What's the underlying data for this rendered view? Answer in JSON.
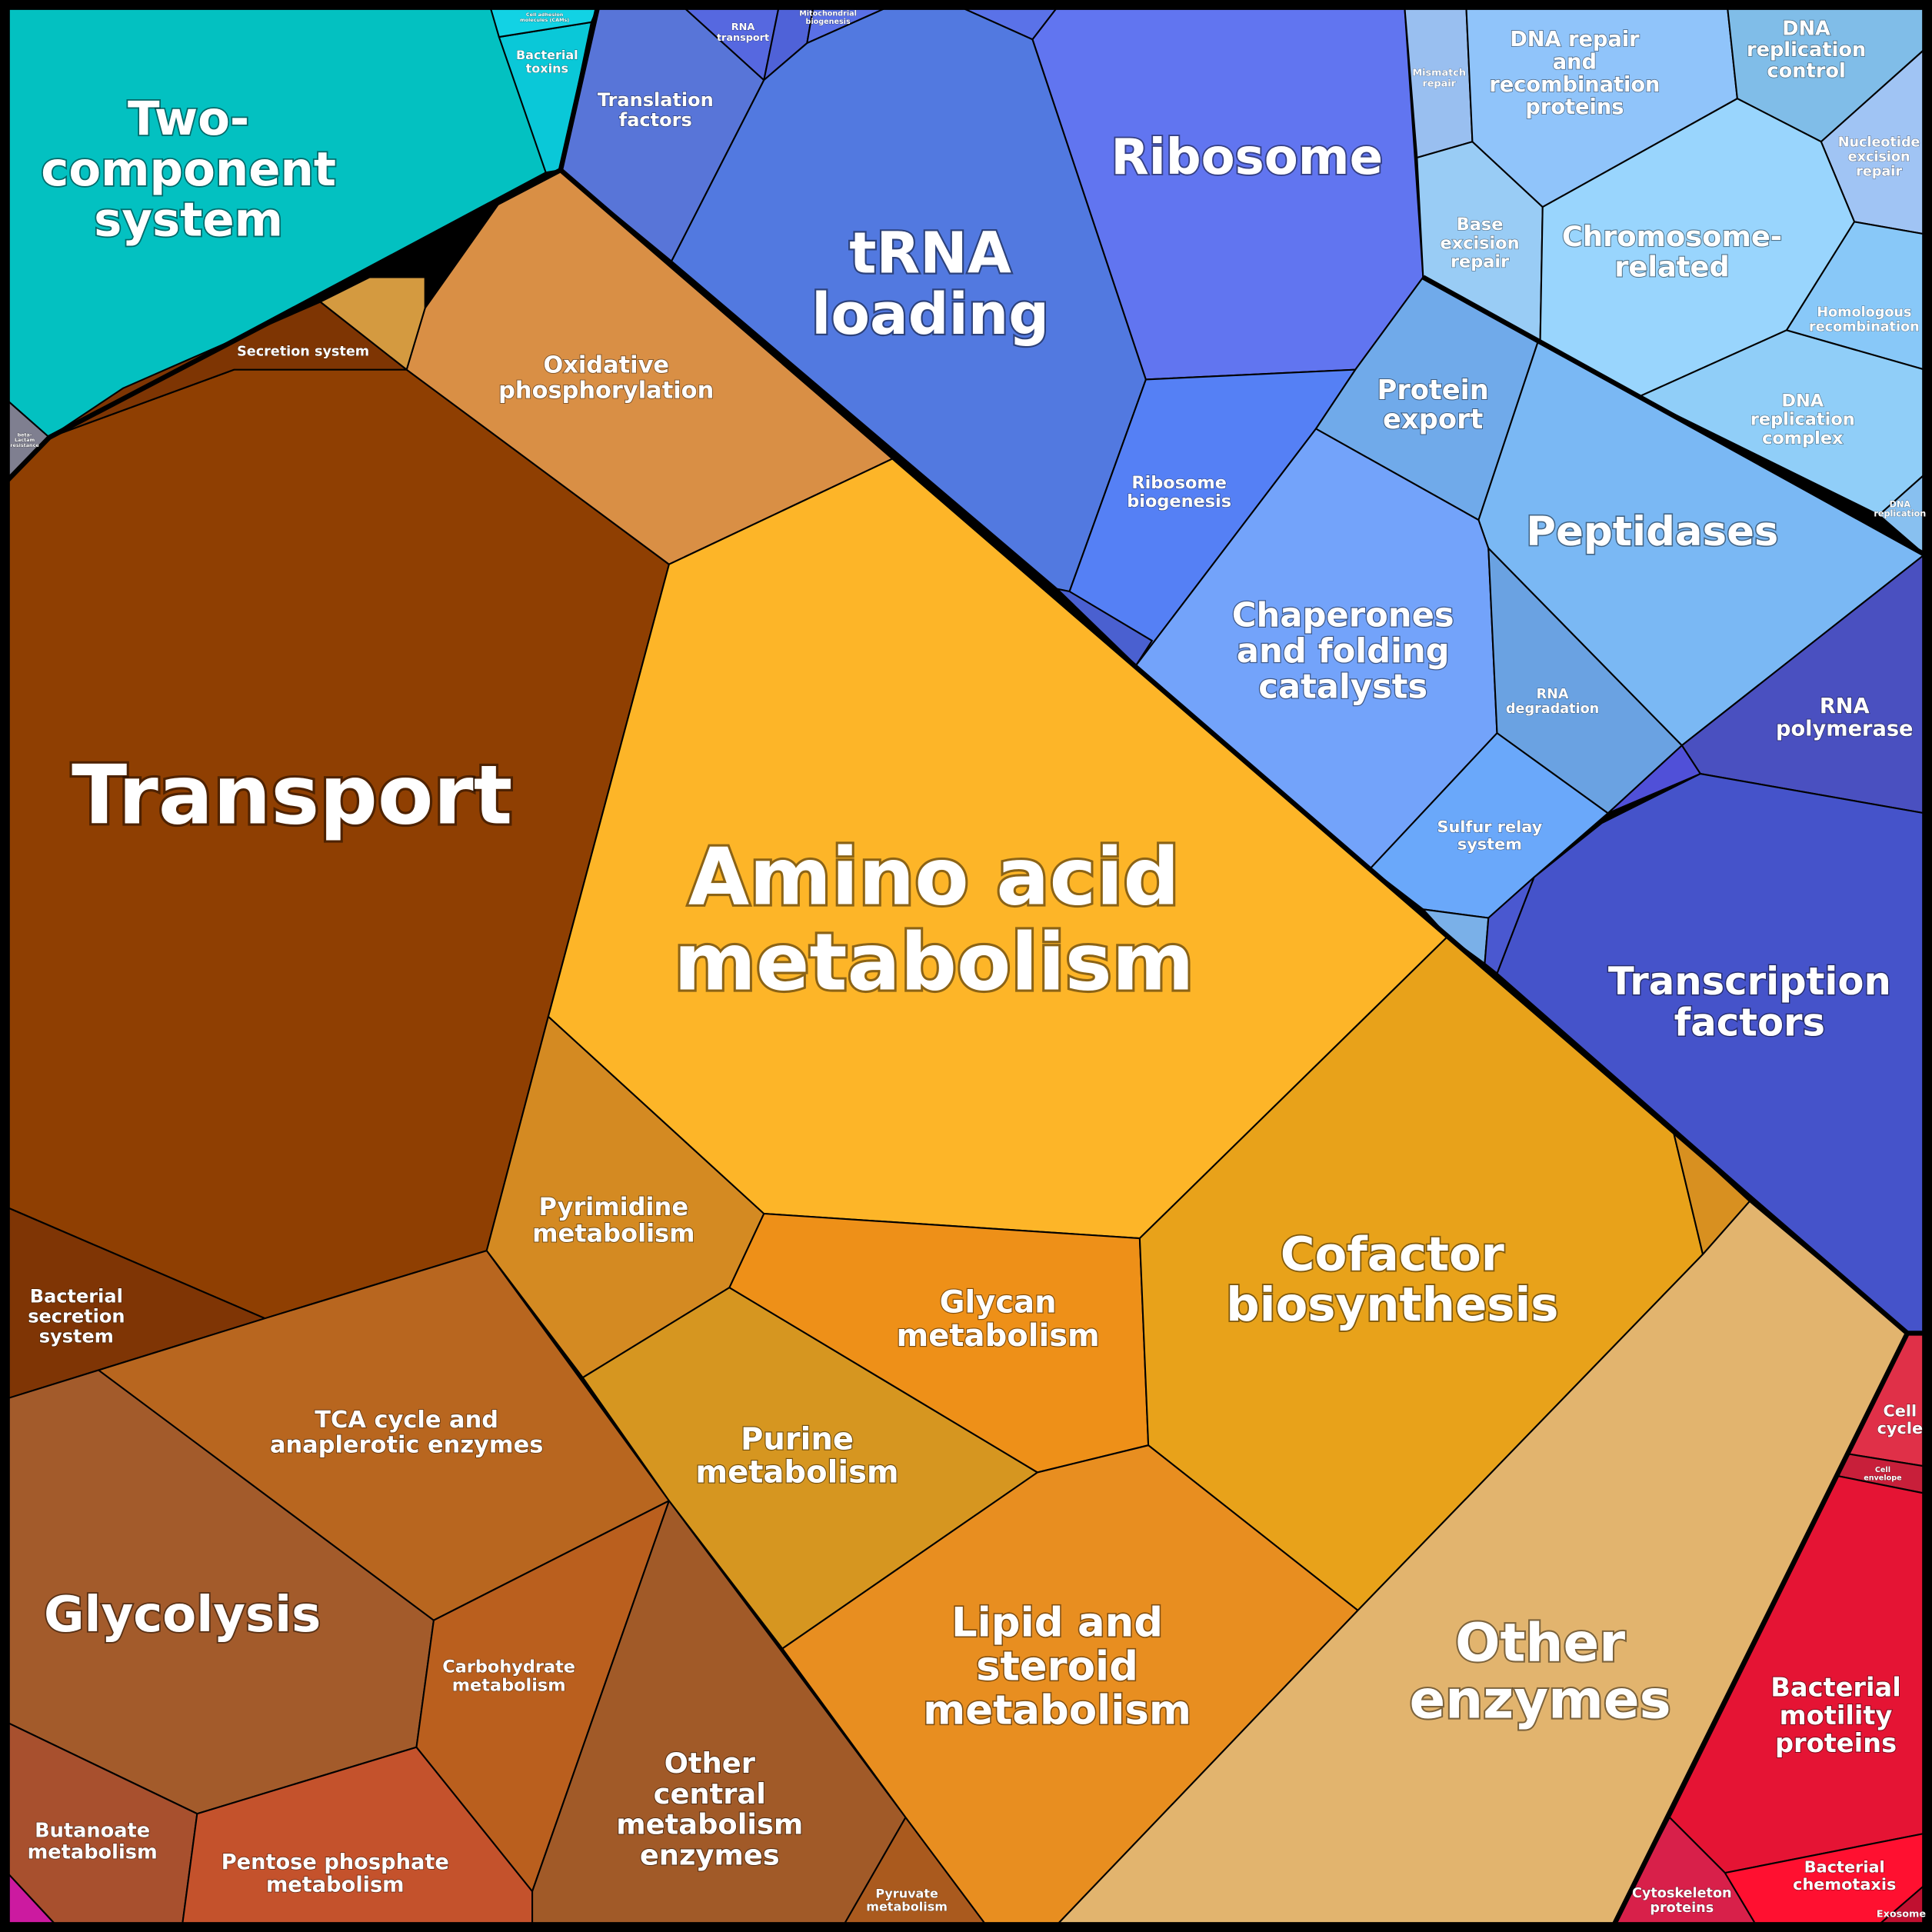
{
  "cells": [
    {
      "lines": [
        "Two-",
        "component",
        "system"
      ],
      "color": "#03c1c1"
    },
    {
      "lines": [
        "Bacterial",
        "toxins"
      ],
      "color": "#0ac8d8"
    },
    {
      "lines": [
        "Cell adhesion",
        "molecules (CAMs)"
      ],
      "color": "#12d2e4"
    },
    {
      "lines": [
        "beta-",
        "Lactam",
        "resistance"
      ],
      "color": "#7f7f90"
    },
    {
      "lines": [
        "Transport"
      ],
      "color": "#8f3f02"
    },
    {
      "lines": [
        "Secretion system"
      ],
      "color": "#7e3503"
    },
    {
      "lines": [
        "Oxidative",
        "phosphorylation"
      ],
      "color": "#d98f45"
    },
    {
      "color": "#d49a40"
    },
    {
      "lines": [
        "Bacterial",
        "secretion",
        "system"
      ],
      "color": "#7f3505"
    },
    {
      "lines": [
        "Glycolysis"
      ],
      "color": "#a35b2b"
    },
    {
      "lines": [
        "TCA cycle and",
        "anaplerotic enzymes"
      ],
      "color": "#b8661f"
    },
    {
      "lines": [
        "Butanoate",
        "metabolism"
      ],
      "color": "#a8502e"
    },
    {
      "color": "#cc1aa0"
    },
    {
      "lines": [
        "Pentose phosphate",
        "metabolism"
      ],
      "color": "#c4522c"
    },
    {
      "lines": [
        "Carbohydrate",
        "metabolism"
      ],
      "color": "#ba5f1e"
    },
    {
      "lines": [
        "Other",
        "central",
        "metabolism",
        "enzymes"
      ],
      "color": "#a15a28"
    },
    {
      "lines": [
        "Pyruvate",
        "metabolism"
      ],
      "color": "#aa5a1e"
    },
    {
      "lines": [
        "Pyrimidine",
        "metabolism"
      ],
      "color": "#d48a22"
    },
    {
      "lines": [
        "Amino acid",
        "metabolism"
      ],
      "color": "#fdb528"
    },
    {
      "lines": [
        "Purine",
        "metabolism"
      ],
      "color": "#d69620"
    },
    {
      "lines": [
        "Glycan",
        "metabolism"
      ],
      "color": "#ee9018"
    },
    {
      "lines": [
        "Cofactor",
        "biosynthesis"
      ],
      "color": "#e8a21a"
    },
    {
      "color": "#d89020"
    },
    {
      "lines": [
        "Lipid and",
        "steroid",
        "metabolism"
      ],
      "color": "#e88e20"
    },
    {
      "lines": [
        "Other",
        "enzymes"
      ],
      "color": "#e2b46e"
    },
    {
      "lines": [
        "Cell",
        "cycle"
      ],
      "color": "#e03048"
    },
    {
      "lines": [
        "Cell",
        "envelope"
      ],
      "color": "#c81f3a"
    },
    {
      "lines": [
        "Bacterial",
        "motility",
        "proteins"
      ],
      "color": "#e51434"
    },
    {
      "lines": [
        "Cytoskeleton",
        "proteins"
      ],
      "color": "#d8204a"
    },
    {
      "lines": [
        "Bacterial",
        "chemotaxis"
      ],
      "color": "#ff1030"
    },
    {
      "lines": [
        "Exosome"
      ],
      "color": "#c01030"
    },
    {
      "lines": [
        "Translation",
        "factors"
      ],
      "color": "#5875d8"
    },
    {
      "lines": [
        "RNA",
        "transport"
      ],
      "color": "#5668e0"
    },
    {
      "color": "#4f62d8"
    },
    {
      "lines": [
        "Mitochondrial",
        "biogenesis"
      ],
      "color": "#5a70e6"
    },
    {
      "color": "#5a72e8"
    },
    {
      "lines": [
        "tRNA",
        "loading"
      ],
      "color": "#5279e0"
    },
    {
      "lines": [
        "Ribosome"
      ],
      "color": "#6175f0"
    },
    {
      "lines": [
        "Ribosome",
        "biogenesis"
      ],
      "color": "#5580f5"
    },
    {
      "color": "#4a60d0"
    },
    {
      "lines": [
        "Mismatch",
        "repair"
      ],
      "color": "#99bff0"
    },
    {
      "lines": [
        "Base",
        "excision",
        "repair"
      ],
      "color": "#99ccf5"
    },
    {
      "lines": [
        "DNA repair",
        "and",
        "recombination",
        "proteins"
      ],
      "color": "#90c4fa"
    },
    {
      "lines": [
        "DNA",
        "replication",
        "control"
      ],
      "color": "#80bde8"
    },
    {
      "lines": [
        "Nucleotide",
        "excision",
        "repair"
      ],
      "color": "#a0c4f4"
    },
    {
      "lines": [
        "Chromosome-",
        "related"
      ],
      "color": "#99d5fd"
    },
    {
      "lines": [
        "Homologous",
        "recombination"
      ],
      "color": "#88c8f8"
    },
    {
      "lines": [
        "DNA",
        "replication",
        "complex"
      ],
      "color": "#90cef8"
    },
    {
      "lines": [
        "DNA",
        "replication"
      ],
      "color": "#88c0f0"
    },
    {
      "lines": [
        "Protein",
        "export"
      ],
      "color": "#70aaea"
    },
    {
      "lines": [
        "Peptidases"
      ],
      "color": "#7ab8f4"
    },
    {
      "lines": [
        "Chaperones",
        "and folding",
        "catalysts"
      ],
      "color": "#73a3fa"
    },
    {
      "lines": [
        "RNA",
        "degradation"
      ],
      "color": "#6aa2e2"
    },
    {
      "lines": [
        "Sulfur relay",
        "system"
      ],
      "color": "#6aa8fa"
    },
    {
      "color": "#7ab0e8"
    },
    {
      "lines": [
        "RNA",
        "polymerase"
      ],
      "color": "#4a50c0"
    },
    {
      "color": "#5050d8"
    },
    {
      "lines": [
        "Transcription",
        "factors"
      ],
      "color": "#4553ca"
    },
    {
      "color": "#4a58d0"
    }
  ]
}
